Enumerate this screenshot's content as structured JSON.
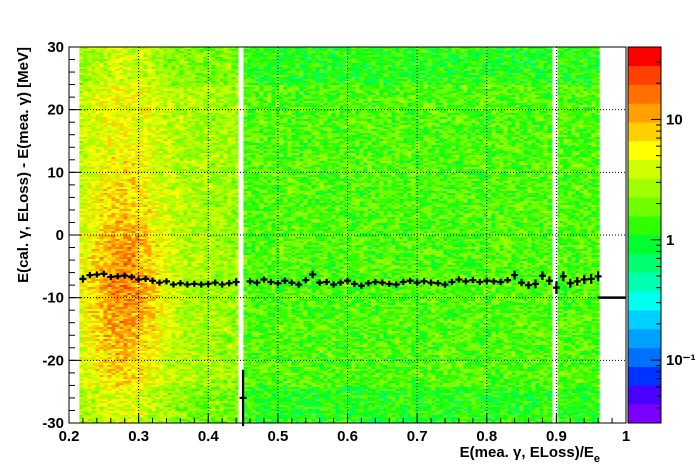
{
  "chart_data": {
    "type": "heatmap",
    "xlabel": "E(mea. γ, ELoss)/E",
    "xlabel_sub": "e",
    "ylabel": "E(cal. γ, ELoss) - E(mea. γ) [MeV]",
    "xlim": [
      0.2,
      1.0
    ],
    "ylim": [
      -30,
      30
    ],
    "x_ticks": [
      "0.2",
      "0.3",
      "0.4",
      "0.5",
      "0.6",
      "0.7",
      "0.8",
      "0.9",
      "1"
    ],
    "y_ticks": [
      "-30",
      "-20",
      "-10",
      "0",
      "10",
      "20",
      "30"
    ],
    "grid": true,
    "grid_style": "dotted",
    "colorbar": {
      "scale": "log",
      "range": [
        0.03,
        40
      ],
      "tick_labels": [
        "10",
        "1",
        "10⁻¹"
      ],
      "tick_values": [
        10,
        1,
        0.1
      ],
      "palette": [
        "#7a00ff",
        "#4a00ff",
        "#0033ff",
        "#0070ff",
        "#00a0ff",
        "#00d0ff",
        "#00ffee",
        "#00ffb0",
        "#00ff70",
        "#00ff30",
        "#30ff00",
        "#70ff00",
        "#a0ff00",
        "#d0ff00",
        "#ffff00",
        "#ffd000",
        "#ffa000",
        "#ff7000",
        "#ff4000",
        "#ff0000"
      ]
    },
    "heatmap_x_range": [
      0.215,
      0.96
    ],
    "empty_columns_x": [
      0.447,
      0.898
    ],
    "profile_series": {
      "name": "",
      "x": [
        0.22,
        0.23,
        0.24,
        0.25,
        0.26,
        0.27,
        0.28,
        0.29,
        0.3,
        0.31,
        0.32,
        0.33,
        0.34,
        0.35,
        0.36,
        0.37,
        0.38,
        0.39,
        0.4,
        0.41,
        0.42,
        0.43,
        0.44,
        0.45,
        0.46,
        0.47,
        0.48,
        0.49,
        0.5,
        0.51,
        0.52,
        0.53,
        0.54,
        0.55,
        0.56,
        0.57,
        0.58,
        0.59,
        0.6,
        0.61,
        0.62,
        0.63,
        0.64,
        0.65,
        0.66,
        0.67,
        0.68,
        0.69,
        0.7,
        0.71,
        0.72,
        0.73,
        0.74,
        0.75,
        0.76,
        0.77,
        0.78,
        0.79,
        0.8,
        0.81,
        0.82,
        0.83,
        0.84,
        0.85,
        0.86,
        0.87,
        0.88,
        0.89,
        0.9,
        0.91,
        0.92,
        0.93,
        0.94,
        0.95,
        0.96
      ],
      "y": [
        -7.0,
        -6.4,
        -6.3,
        -6.2,
        -6.7,
        -6.6,
        -6.5,
        -6.7,
        -7.1,
        -7.0,
        -7.3,
        -7.6,
        -7.4,
        -7.9,
        -7.7,
        -7.9,
        -7.8,
        -7.9,
        -7.8,
        -7.6,
        -7.9,
        -7.7,
        -7.5,
        -26.0,
        -7.4,
        -7.6,
        -7.1,
        -7.5,
        -7.7,
        -7.3,
        -7.6,
        -7.9,
        -7.2,
        -6.3,
        -7.6,
        -7.5,
        -7.9,
        -7.6,
        -7.3,
        -7.8,
        -8.1,
        -7.7,
        -7.5,
        -7.6,
        -7.8,
        -7.9,
        -7.5,
        -7.3,
        -7.6,
        -7.4,
        -7.6,
        -7.7,
        -7.9,
        -7.5,
        -7.1,
        -7.4,
        -7.2,
        -7.5,
        -7.3,
        -7.4,
        -7.5,
        -7.2,
        -6.4,
        -7.6,
        -8.0,
        -7.8,
        -6.5,
        -7.3,
        -8.4,
        -6.6,
        -7.7,
        -7.4,
        -7.1,
        -7.0,
        -6.6
      ],
      "y_err": [
        0.6,
        0.5,
        0.5,
        0.5,
        0.5,
        0.5,
        0.5,
        0.5,
        0.5,
        0.5,
        0.5,
        0.5,
        0.5,
        0.5,
        0.5,
        0.5,
        0.5,
        0.5,
        0.5,
        0.5,
        0.5,
        0.5,
        0.6,
        4.5,
        0.5,
        0.5,
        0.5,
        0.5,
        0.5,
        0.5,
        0.5,
        0.5,
        0.5,
        0.6,
        0.5,
        0.5,
        0.5,
        0.5,
        0.5,
        0.5,
        0.5,
        0.5,
        0.5,
        0.5,
        0.5,
        0.5,
        0.5,
        0.5,
        0.5,
        0.5,
        0.5,
        0.5,
        0.5,
        0.5,
        0.5,
        0.5,
        0.5,
        0.5,
        0.5,
        0.5,
        0.5,
        0.5,
        0.7,
        0.6,
        0.6,
        0.7,
        0.7,
        0.7,
        1.0,
        0.8,
        0.7,
        0.7,
        0.7,
        0.8,
        0.8
      ]
    },
    "overflow_marker": {
      "x_range": [
        0.96,
        1.0
      ],
      "y": -10
    }
  }
}
